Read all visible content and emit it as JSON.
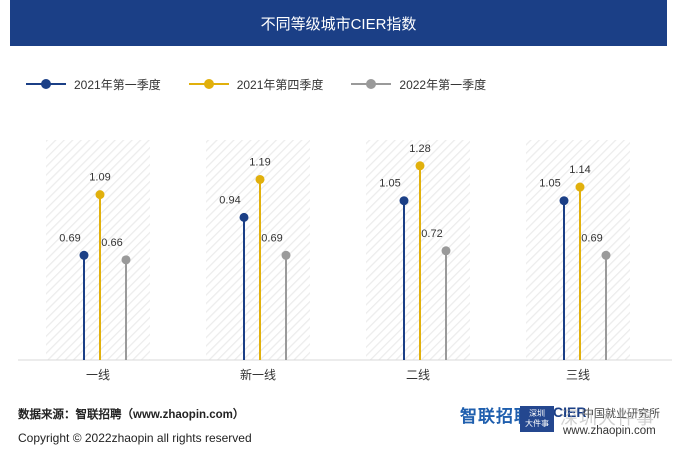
{
  "title": "不同等级城市CIER指数",
  "legend": [
    {
      "label": "2021年第一季度",
      "color": "#1b3f86"
    },
    {
      "label": "2021年第四季度",
      "color": "#e1b00c"
    },
    {
      "label": "2022年第一季度",
      "color": "#9a9a9a"
    }
  ],
  "chart_data": {
    "type": "lollipop",
    "categories": [
      "一线",
      "新一线",
      "二线",
      "三线"
    ],
    "series": [
      {
        "name": "2021年第一季度",
        "color": "#1b3f86",
        "values": [
          0.69,
          0.94,
          1.05,
          1.05
        ]
      },
      {
        "name": "2021年第四季度",
        "color": "#e1b00c",
        "values": [
          1.09,
          1.19,
          1.28,
          1.14
        ]
      },
      {
        "name": "2022年第一季度",
        "color": "#9a9a9a",
        "values": [
          0.66,
          0.69,
          0.72,
          0.69
        ]
      }
    ],
    "ylim": [
      0,
      1.45
    ],
    "legend_position": "top-left",
    "grid": false
  },
  "footer": {
    "source": "数据来源：智联招聘（www.zhaopin.com）",
    "copyright": "Copyright ©  2022zhaopin all rights reserved",
    "logo_zhilian": "智联招聘",
    "logo_cier": "CIER",
    "logo_ciidr": "中国就业研究所",
    "url": "www.zhaopin.com",
    "badge_line1": "深圳",
    "badge_line2": "大件事",
    "watermark": "深圳大件事"
  }
}
